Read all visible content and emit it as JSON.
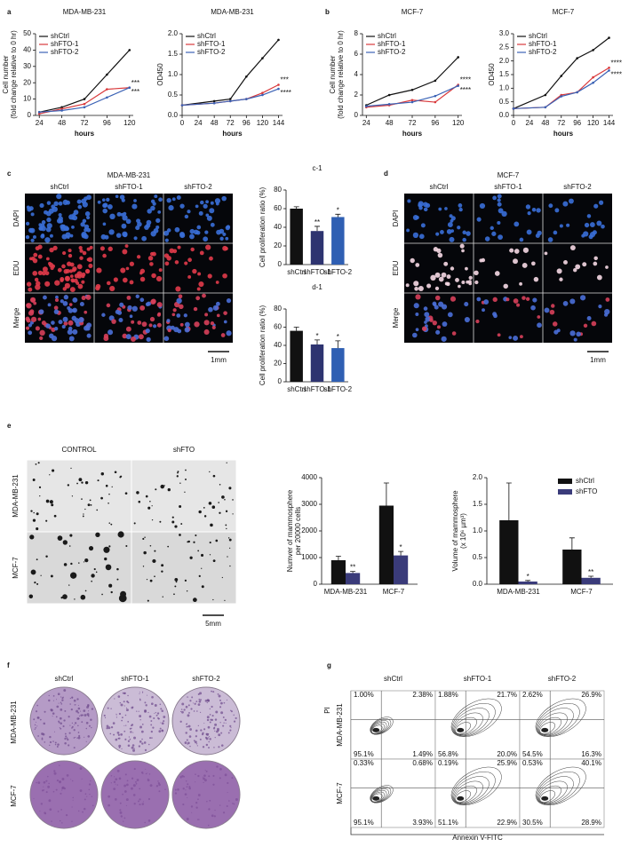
{
  "chart_data": [
    {
      "type": "line",
      "title": "MDA-MB-231",
      "xlabel": "hours",
      "ylabel": [
        "Cell number",
        "(fold change relative to 0 hr)"
      ],
      "x": [
        24,
        48,
        72,
        96,
        120
      ],
      "xlim": [
        20,
        124
      ],
      "xticks": [
        24,
        48,
        72,
        96,
        120
      ],
      "ylim": [
        0,
        50
      ],
      "yticks": [
        0,
        10,
        20,
        30,
        40,
        50
      ],
      "series": [
        {
          "name": "shCtrl",
          "color": "#111111",
          "values": [
            2,
            5,
            10,
            25,
            40
          ]
        },
        {
          "name": "shFTO-1",
          "color": "#d9393b",
          "values": [
            1,
            4,
            7,
            16,
            17
          ]
        },
        {
          "name": "shFTO-2",
          "color": "#3b62b5",
          "values": [
            2,
            3,
            5,
            11,
            17
          ]
        }
      ],
      "annotations": [
        "***",
        "***"
      ],
      "legend": "upper left"
    },
    {
      "type": "line",
      "title": "MDA-MB-231",
      "xlabel": "hours",
      "ylabel": [
        "OD450"
      ],
      "x": [
        0,
        48,
        72,
        96,
        120,
        144
      ],
      "xlim": [
        0,
        150
      ],
      "xticks": [
        0,
        24,
        48,
        72,
        96,
        120,
        144
      ],
      "ylim": [
        0,
        2
      ],
      "yticks": [
        {
          "value": 0,
          "label": "0.0"
        },
        0.5,
        {
          "value": 1,
          "label": "1.0"
        },
        1.5,
        {
          "value": 2,
          "label": "2.0"
        }
      ],
      "series": [
        {
          "name": "shCtrl",
          "color": "#111111",
          "values": [
            0.25,
            0.35,
            0.4,
            0.95,
            1.4,
            1.85
          ]
        },
        {
          "name": "shFTO-1",
          "color": "#d9393b",
          "values": [
            0.25,
            0.3,
            0.35,
            0.4,
            0.55,
            0.75
          ]
        },
        {
          "name": "shFTO-2",
          "color": "#3b62b5",
          "values": [
            0.25,
            0.3,
            0.35,
            0.4,
            0.5,
            0.65
          ]
        }
      ],
      "annotations": [
        "***",
        "****"
      ],
      "legend": "upper left"
    },
    {
      "type": "line",
      "title": "MCF-7",
      "xlabel": "hours",
      "ylabel": [
        "Cell number",
        "(fold change relative to 0 hr)"
      ],
      "x": [
        24,
        48,
        72,
        96,
        120
      ],
      "xlim": [
        20,
        124
      ],
      "xticks": [
        24,
        48,
        72,
        96,
        120
      ],
      "ylim": [
        0,
        8
      ],
      "yticks": [
        0,
        2,
        4,
        6,
        8
      ],
      "series": [
        {
          "name": "shCtrl",
          "color": "#111111",
          "values": [
            1,
            2,
            2.5,
            3.4,
            5.7
          ]
        },
        {
          "name": "shFTO-1",
          "color": "#d9393b",
          "values": [
            0.8,
            1,
            1.5,
            1.3,
            3
          ]
        },
        {
          "name": "shFTO-2",
          "color": "#3b62b5",
          "values": [
            0.9,
            1.1,
            1.3,
            1.9,
            2.9
          ]
        }
      ],
      "annotations": [
        "****",
        "****"
      ],
      "legend": "upper left"
    },
    {
      "type": "line",
      "title": "MCF-7",
      "xlabel": "hours",
      "ylabel": [
        "OD450"
      ],
      "x": [
        0,
        48,
        72,
        96,
        120,
        144
      ],
      "xlim": [
        0,
        150
      ],
      "xticks": [
        0,
        24,
        48,
        72,
        96,
        120,
        144
      ],
      "ylim": [
        0,
        3
      ],
      "yticks": [
        {
          "value": 0,
          "label": "0.0"
        },
        0.5,
        {
          "value": 1,
          "label": "1.0"
        },
        1.5,
        {
          "value": 2,
          "label": "2.0"
        },
        2.5,
        {
          "value": 3,
          "label": "3.0"
        }
      ],
      "series": [
        {
          "name": "shCtrl",
          "color": "#111111",
          "values": [
            0.25,
            0.75,
            1.45,
            2.1,
            2.4,
            2.85
          ]
        },
        {
          "name": "shFTO-1",
          "color": "#d9393b",
          "values": [
            0.25,
            0.3,
            0.75,
            0.85,
            1.4,
            1.75
          ]
        },
        {
          "name": "shFTO-2",
          "color": "#3b62b5",
          "values": [
            0.25,
            0.3,
            0.7,
            0.85,
            1.2,
            1.65
          ]
        }
      ],
      "annotations": [
        "****",
        "****"
      ],
      "legend": "upper left"
    },
    {
      "type": "bar",
      "title": "c-1",
      "ylabel": [
        "Cell proliferation ratio (%)"
      ],
      "categories": [
        "shCtrl",
        "shFTO-1",
        "shFTO-2"
      ],
      "values": [
        60,
        36,
        51
      ],
      "errors": [
        2,
        5,
        3
      ],
      "colors": [
        "#111111",
        "#2e3470",
        "#2f5fb3"
      ],
      "ylim": [
        0,
        80
      ],
      "yticks": [
        0,
        20,
        40,
        60,
        80
      ],
      "annotations": [
        "**",
        "*"
      ]
    },
    {
      "type": "bar",
      "title": "d-1",
      "ylabel": [
        "Cell proliferation ratio (%)"
      ],
      "categories": [
        "shCtrl",
        "shFTO-1",
        "shFTO-2"
      ],
      "values": [
        56,
        41,
        37
      ],
      "errors": [
        4,
        5,
        8
      ],
      "colors": [
        "#111111",
        "#2e3470",
        "#2f5fb3"
      ],
      "ylim": [
        0,
        80
      ],
      "yticks": [
        0,
        20,
        40,
        60,
        80
      ],
      "annotations": [
        "*",
        "*"
      ]
    },
    {
      "type": "bar",
      "ylabel": [
        "Numver of mammosphere",
        "per 20000 cells"
      ],
      "categories": [
        "MDA-MB-231",
        "MCF-7"
      ],
      "ylim": [
        0,
        4000
      ],
      "yticks": [
        0,
        1000,
        2000,
        3000,
        4000
      ],
      "series": [
        {
          "name": "shCtrl",
          "color": "#111111",
          "values": [
            900,
            2950
          ],
          "errors": [
            150,
            850
          ]
        },
        {
          "name": "shFTO",
          "color": "#3a3b7a",
          "values": [
            420,
            1080
          ],
          "errors": [
            60,
            150
          ]
        }
      ],
      "annotations": [
        "**",
        "*"
      ]
    },
    {
      "type": "bar",
      "ylabel": [
        "Volume of mammosphere",
        "(x 10⁶ µm³)"
      ],
      "categories": [
        "MDA-MB-231",
        "MCF-7"
      ],
      "ylim": [
        0,
        2
      ],
      "yticks": [
        {
          "value": 0,
          "label": "0.0"
        },
        0.5,
        {
          "value": 1,
          "label": "1.0"
        },
        1.5,
        {
          "value": 2,
          "label": "2.0"
        }
      ],
      "series": [
        {
          "name": "shCtrl",
          "color": "#111111",
          "values": [
            1.2,
            0.65
          ],
          "errors": [
            0.7,
            0.22
          ]
        },
        {
          "name": "shFTO",
          "color": "#3a3b7a",
          "values": [
            0.05,
            0.12
          ],
          "errors": [
            0.02,
            0.03
          ]
        }
      ],
      "annotations": [
        "*",
        "**"
      ],
      "legend": "upper right"
    }
  ],
  "panel_labels": [
    "a",
    "b",
    "c",
    "d",
    "e",
    "f",
    "g"
  ],
  "panels": {
    "c": {
      "title": "MDA-MB-231",
      "columns": [
        "shCtrl",
        "shFTO-1",
        "shFTO-2"
      ],
      "rows": [
        "DAPI",
        "EDU",
        "Merge"
      ],
      "scale": "1mm"
    },
    "d": {
      "title": "MCF-7",
      "columns": [
        "shCtrl",
        "shFTO-1",
        "shFTO-2"
      ],
      "rows": [
        "DAPI",
        "EDU",
        "Merge"
      ],
      "scale": "1mm"
    },
    "e": {
      "columns": [
        "CONTROL",
        "shFTO"
      ],
      "rows": [
        "MDA-MB-231",
        "MCF-7"
      ],
      "scale": "5mm"
    },
    "f": {
      "columns": [
        "shCtrl",
        "shFTO-1",
        "shFTO-2"
      ],
      "rows": [
        "MDA-MB-231",
        "MCF-7"
      ]
    },
    "g": {
      "columns": [
        "shCtrl",
        "shFTO-1",
        "shFTO-2"
      ],
      "rows": [
        "MDA-MB-231",
        "MCF-7"
      ],
      "ylabel": "PI",
      "xlabel": "Annexin V-FITC",
      "quadrants": [
        [
          [
            "1.00%",
            "2.38%",
            "95.1%",
            "1.49%"
          ],
          [
            "1.88%",
            "21.7%",
            "56.8%",
            "20.0%"
          ],
          [
            "2.62%",
            "26.9%",
            "54.5%",
            "16.3%"
          ]
        ],
        [
          [
            "0.33%",
            "0.68%",
            "95.1%",
            "3.93%"
          ],
          [
            "0.19%",
            "25.9%",
            "51.1%",
            "22.9%"
          ],
          [
            "0.53%",
            "40.1%",
            "30.5%",
            "28.9%"
          ]
        ]
      ]
    }
  }
}
